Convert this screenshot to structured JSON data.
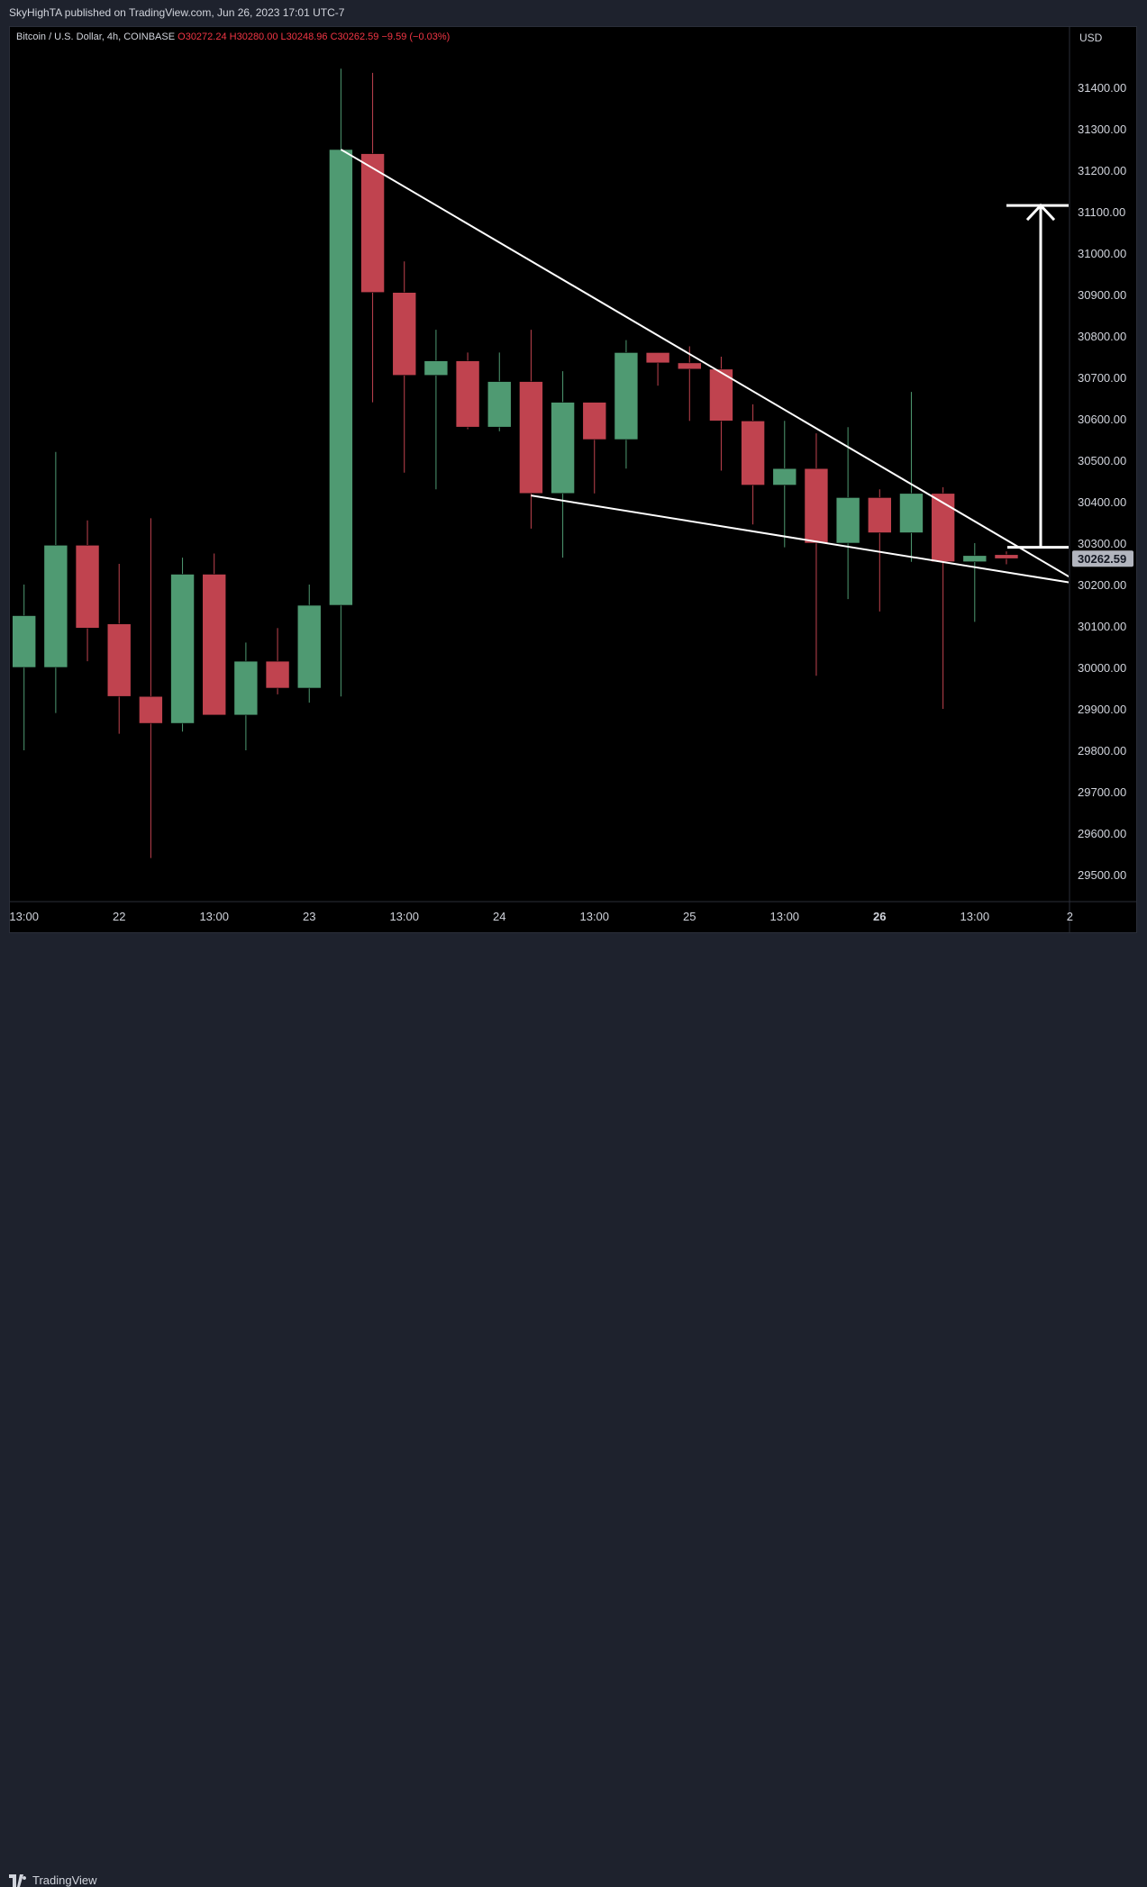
{
  "header": {
    "published": "SkyHighTA published on TradingView.com, Jun 26, 2023 17:01 UTC-7"
  },
  "symbol": {
    "name": "Bitcoin / U.S. Dollar, 4h, COINBASE",
    "open": "O30272.24",
    "high": "H30280.00",
    "low": "L30248.96",
    "close": "C30262.59",
    "change": "−9.59 (−0.03%)"
  },
  "price_scale": {
    "currency": "USD",
    "last_price_label": "30262.59",
    "last_price": 30262.59
  },
  "footer": {
    "brand": "TradingView"
  },
  "colors": {
    "up": "#4f9a72",
    "down": "#c0434f",
    "background": "#000000",
    "drawing": "#ffffff",
    "last_price_bg": "#b2b5be"
  },
  "chart_data": {
    "type": "candlestick",
    "interval": "4h",
    "ylim": [
      29400,
      31600
    ],
    "y_ticks": [
      29500,
      29600,
      29700,
      29800,
      29900,
      30000,
      30100,
      30200,
      30300,
      30400,
      30500,
      30600,
      30700,
      30800,
      30900,
      31000,
      31100,
      31200,
      31300,
      31400
    ],
    "x_tick_labels": [
      "13:00",
      "22",
      "13:00",
      "23",
      "13:00",
      "24",
      "13:00",
      "25",
      "13:00",
      "26",
      "13:00",
      "2"
    ],
    "x_tick_index": [
      0,
      3,
      6,
      9,
      12,
      15,
      18,
      21,
      24,
      27,
      30,
      33
    ],
    "bold_tick": "26",
    "candles": [
      {
        "o": 30000,
        "h": 30200,
        "l": 29800,
        "c": 30125
      },
      {
        "o": 30000,
        "h": 30520,
        "l": 29890,
        "c": 30295
      },
      {
        "o": 30295,
        "h": 30355,
        "l": 30015,
        "c": 30095
      },
      {
        "o": 30105,
        "h": 30250,
        "l": 29840,
        "c": 29930
      },
      {
        "o": 29930,
        "h": 30360,
        "l": 29540,
        "c": 29865
      },
      {
        "o": 29865,
        "h": 30265,
        "l": 29845,
        "c": 30225
      },
      {
        "o": 30225,
        "h": 30275,
        "l": 29885,
        "c": 29885
      },
      {
        "o": 29885,
        "h": 30060,
        "l": 29800,
        "c": 30015
      },
      {
        "o": 30015,
        "h": 30095,
        "l": 29935,
        "c": 29950
      },
      {
        "o": 29950,
        "h": 30200,
        "l": 29915,
        "c": 30150
      },
      {
        "o": 30150,
        "h": 31445,
        "l": 29930,
        "c": 31250
      },
      {
        "o": 31240,
        "h": 31435,
        "l": 30640,
        "c": 30905
      },
      {
        "o": 30905,
        "h": 30980,
        "l": 30470,
        "c": 30705
      },
      {
        "o": 30705,
        "h": 30815,
        "l": 30430,
        "c": 30740
      },
      {
        "o": 30740,
        "h": 30760,
        "l": 30575,
        "c": 30580
      },
      {
        "o": 30580,
        "h": 30760,
        "l": 30570,
        "c": 30690
      },
      {
        "o": 30690,
        "h": 30815,
        "l": 30335,
        "c": 30420
      },
      {
        "o": 30420,
        "h": 30715,
        "l": 30265,
        "c": 30640
      },
      {
        "o": 30640,
        "h": 30640,
        "l": 30420,
        "c": 30550
      },
      {
        "o": 30550,
        "h": 30790,
        "l": 30480,
        "c": 30760
      },
      {
        "o": 30760,
        "h": 30760,
        "l": 30680,
        "c": 30735
      },
      {
        "o": 30735,
        "h": 30775,
        "l": 30595,
        "c": 30720
      },
      {
        "o": 30720,
        "h": 30750,
        "l": 30475,
        "c": 30595
      },
      {
        "o": 30595,
        "h": 30635,
        "l": 30345,
        "c": 30440
      },
      {
        "o": 30440,
        "h": 30595,
        "l": 30290,
        "c": 30480
      },
      {
        "o": 30480,
        "h": 30565,
        "l": 29980,
        "c": 30300
      },
      {
        "o": 30300,
        "h": 30580,
        "l": 30165,
        "c": 30410
      },
      {
        "o": 30410,
        "h": 30430,
        "l": 30135,
        "c": 30325
      },
      {
        "o": 30325,
        "h": 30665,
        "l": 30255,
        "c": 30420
      },
      {
        "o": 30420,
        "h": 30435,
        "l": 29900,
        "c": 30255
      },
      {
        "o": 30255,
        "h": 30300,
        "l": 30110,
        "c": 30270
      },
      {
        "o": 30272.24,
        "h": 30280,
        "l": 30248.96,
        "c": 30262.59
      }
    ],
    "drawings": {
      "upper_trendline": {
        "from": {
          "index": 10,
          "price": 31250
        },
        "to": {
          "index": 33.4,
          "price": 30200
        }
      },
      "lower_trendline": {
        "from": {
          "index": 16,
          "price": 30415
        },
        "to": {
          "index": 33.4,
          "price": 30200
        }
      },
      "target_arrow": {
        "index": 31.9,
        "from_price": 30290,
        "to_price": 31115
      }
    }
  }
}
